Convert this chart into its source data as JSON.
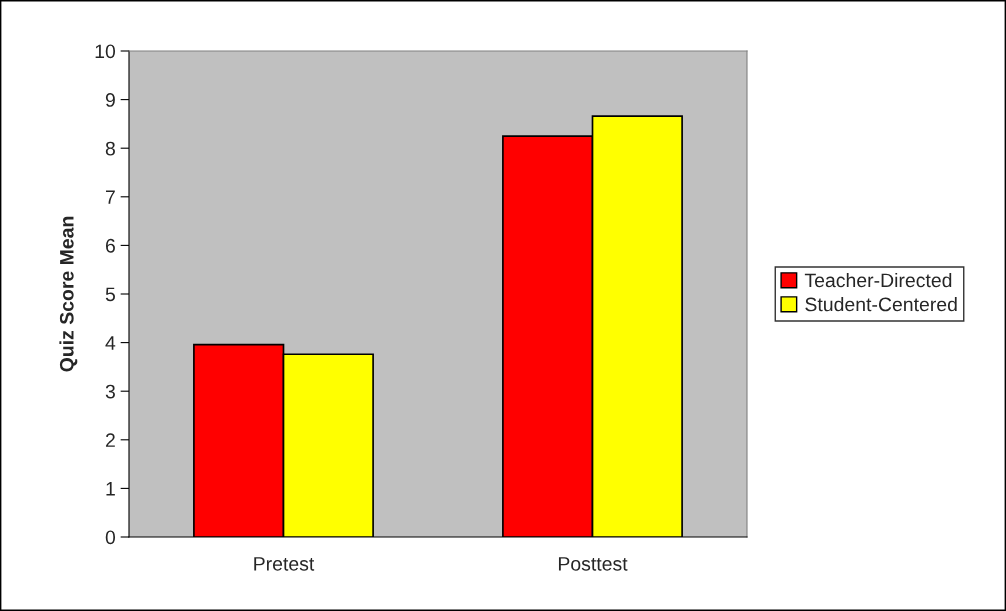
{
  "chart_data": {
    "type": "bar",
    "ylabel": "Quiz Score Mean",
    "categories": [
      "Pretest",
      "Posttest"
    ],
    "series": [
      {
        "name": "Teacher-Directed",
        "color": "#ff0000",
        "values": [
          3.96,
          8.25
        ]
      },
      {
        "name": "Student-Centered",
        "color": "#ffff00",
        "values": [
          3.76,
          8.66
        ]
      }
    ],
    "ylim": [
      0,
      10
    ],
    "yticks": [
      0,
      1,
      2,
      3,
      4,
      5,
      6,
      7,
      8,
      9,
      10
    ],
    "grid": false,
    "legend": "right"
  }
}
